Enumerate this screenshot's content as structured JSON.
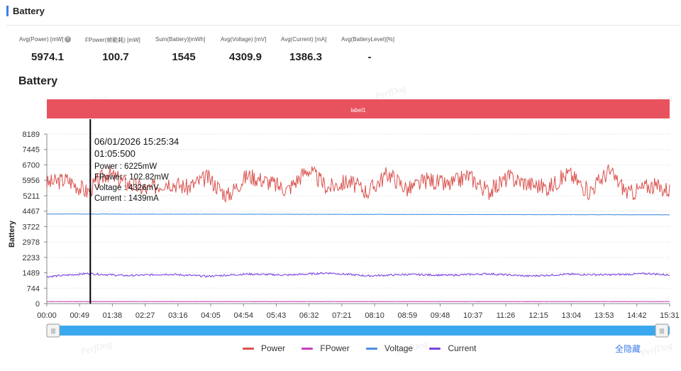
{
  "section": {
    "title": "Battery"
  },
  "stats": [
    {
      "label": "Avg(Power) [mW]",
      "value": "5974.1",
      "help": "?"
    },
    {
      "label": "FPower(帧能耗) [mW]",
      "value": "100.7"
    },
    {
      "label": "Sum(Battery)[mWh]",
      "value": "1545"
    },
    {
      "label": "Avg(Voltage) [mV]",
      "value": "4309.9"
    },
    {
      "label": "Avg(Current) [mA]",
      "value": "1386.3"
    },
    {
      "label": "Avg(BatteryLevel)[%]",
      "value": "-"
    }
  ],
  "chart_data": {
    "type": "line",
    "title": "Battery",
    "ylabel": "Battery",
    "label_band": "label1",
    "watermark": "PerfDog",
    "yticks": [
      0,
      744,
      1489,
      2233,
      2978,
      3722,
      4467,
      5211,
      5956,
      6700,
      7445,
      8189
    ],
    "ylim": [
      0,
      8189
    ],
    "xticks": [
      "00:00",
      "00:49",
      "01:38",
      "02:27",
      "03:16",
      "04:05",
      "04:54",
      "05:43",
      "06:32",
      "07:21",
      "08:10",
      "08:59",
      "09:48",
      "10:37",
      "11:26",
      "12:15",
      "13:04",
      "13:53",
      "14:42",
      "15:31"
    ],
    "xlim_sec": [
      0,
      931
    ],
    "grid": "horizontal",
    "legend_position": "bottom",
    "series": [
      {
        "name": "Power",
        "color": "#d9534f",
        "x_sec": [
          0,
          30,
          60,
          90,
          120,
          150,
          180,
          210,
          240,
          270,
          300,
          330,
          360,
          390,
          420,
          450,
          480,
          510,
          540,
          570,
          600,
          630,
          660,
          690,
          720,
          750,
          780,
          810,
          840,
          870,
          900,
          931
        ],
        "values": [
          5800,
          6000,
          5400,
          6300,
          5800,
          5500,
          5900,
          5600,
          6100,
          5200,
          6200,
          5900,
          5500,
          6500,
          5600,
          5900,
          5400,
          6300,
          5500,
          6000,
          5700,
          6200,
          5400,
          6100,
          5800,
          5600,
          6300,
          5400,
          6400,
          5300,
          5700,
          5500
        ]
      },
      {
        "name": "FPower",
        "color": "#c640c0",
        "x_sec": [
          0,
          931
        ],
        "values": [
          101,
          100
        ]
      },
      {
        "name": "Voltage",
        "color": "#4a90e2",
        "x_sec": [
          0,
          931
        ],
        "values": [
          4330,
          4290
        ]
      },
      {
        "name": "Current",
        "color": "#7a45e0",
        "x_sec": [
          0,
          60,
          120,
          180,
          240,
          300,
          360,
          420,
          480,
          540,
          600,
          660,
          720,
          780,
          840,
          900,
          931
        ],
        "values": [
          1300,
          1450,
          1350,
          1420,
          1320,
          1430,
          1380,
          1480,
          1340,
          1410,
          1370,
          1440,
          1330,
          1420,
          1390,
          1450,
          1380
        ]
      }
    ],
    "tooltip": {
      "date": "06/01/2026 15:25:34",
      "elapsed": "01:05:500",
      "x_sec": 65,
      "lines": [
        "Power : 6225mW",
        "FPower : 102.82mW",
        "Voltage : 4326mV",
        "Current : 1439mA"
      ]
    }
  },
  "legend": {
    "hide_all": "全隐藏"
  },
  "slider": {
    "left_handle": "|||",
    "right_handle": "|||"
  }
}
